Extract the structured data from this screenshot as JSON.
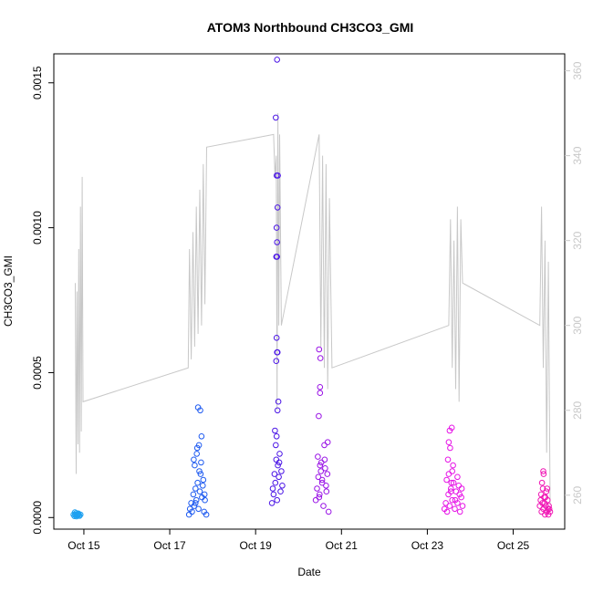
{
  "chart_data": {
    "type": "scatter",
    "title": "ATOM3 Northbound CH3CO3_GMI",
    "xlabel": "Date",
    "ylabel": "CH3CO3_GMI",
    "x_ticks": [
      "Oct 15",
      "Oct 17",
      "Oct 19",
      "Oct 21",
      "Oct 23",
      "Oct 25"
    ],
    "x_tick_days": [
      15,
      17,
      19,
      21,
      23,
      25
    ],
    "x_range_days": [
      14.3,
      26.2
    ],
    "y_ticks": [
      "0.0000",
      "0.0005",
      "0.0010",
      "0.0015"
    ],
    "y_tick_values": [
      0.0,
      0.0005,
      0.001,
      0.0015
    ],
    "ylim": [
      -4e-05,
      0.0016
    ],
    "y2_ticks": [
      "260",
      "280",
      "300",
      "320",
      "340",
      "360"
    ],
    "y2_tick_values": [
      260,
      280,
      300,
      320,
      340,
      360
    ],
    "y2lim": [
      252,
      364
    ],
    "grid": false,
    "colors": {
      "line": "#c8c8c8",
      "right_axis": "#c8c8c8",
      "axis": "#000000",
      "series": [
        "#1ea0f0",
        "#1e5af0",
        "#4a14e6",
        "#9a14e6",
        "#e614e6",
        "#f014b4"
      ]
    },
    "line_series": {
      "name": "",
      "x": [
        14.8,
        14.82,
        14.84,
        14.86,
        14.88,
        14.9,
        14.92,
        14.94,
        14.96,
        14.98,
        17.43,
        17.46,
        17.5,
        17.54,
        17.58,
        17.62,
        17.66,
        17.7,
        17.74,
        17.78,
        17.82,
        17.86,
        19.42,
        19.45,
        19.48,
        19.5,
        19.52,
        19.54,
        19.56,
        19.6,
        20.48,
        20.52,
        20.56,
        20.6,
        20.64,
        20.68,
        20.72,
        20.78,
        23.5,
        23.54,
        23.58,
        23.62,
        23.66,
        23.7,
        23.74,
        23.78,
        23.82,
        25.62,
        25.66,
        25.7,
        25.74,
        25.78,
        25.82,
        25.86
      ],
      "y": [
        310,
        265,
        308,
        272,
        318,
        270,
        328,
        275,
        335,
        282,
        290,
        318,
        292,
        322,
        295,
        328,
        298,
        332,
        300,
        338,
        305,
        342,
        345,
        335,
        340,
        280,
        350,
        300,
        345,
        300,
        345,
        295,
        340,
        290,
        338,
        285,
        330,
        290,
        300,
        325,
        290,
        320,
        285,
        328,
        282,
        325,
        310,
        300,
        328,
        290,
        320,
        270,
        315,
        258
      ]
    },
    "series": [
      {
        "x": [
          14.76,
          14.78,
          14.8,
          14.82,
          14.84,
          14.86,
          14.88,
          14.9,
          14.92,
          14.79,
          14.83,
          14.87,
          14.81,
          14.85,
          14.89
        ],
        "y": [
          1e-05,
          5e-06,
          1e-05,
          1.5e-05,
          8e-06,
          1e-05,
          1.2e-05,
          6e-06,
          1e-05,
          1.8e-05,
          4e-06,
          1.4e-05,
          9e-06,
          1.1e-05,
          7e-06
        ]
      },
      {
        "x": [
          17.45,
          17.47,
          17.5,
          17.52,
          17.55,
          17.57,
          17.6,
          17.62,
          17.65,
          17.67,
          17.7,
          17.72,
          17.75,
          17.77,
          17.8,
          17.82,
          17.85,
          17.58,
          17.63,
          17.68,
          17.73,
          17.78,
          17.6,
          17.66,
          17.71,
          17.74,
          17.64,
          17.69,
          17.56,
          17.81
        ],
        "y": [
          1e-05,
          3e-05,
          5e-05,
          2e-05,
          8e-05,
          4e-05,
          0.0001,
          6e-05,
          0.00012,
          3e-05,
          9e-05,
          0.00015,
          7e-05,
          0.00011,
          2e-05,
          6e-05,
          1e-05,
          0.00018,
          0.00022,
          0.00025,
          0.00019,
          0.00013,
          5e-05,
          0.00038,
          0.00037,
          0.00028,
          0.00024,
          0.00016,
          0.0002,
          8e-05
        ]
      },
      {
        "x": [
          19.38,
          19.4,
          19.42,
          19.44,
          19.46,
          19.48,
          19.5,
          19.52,
          19.54,
          19.56,
          19.58,
          19.6,
          19.62,
          19.45,
          19.47,
          19.49,
          19.51,
          19.53,
          19.55,
          19.48,
          19.5,
          19.49,
          19.51,
          19.48,
          19.5,
          19.49,
          19.51,
          19.5,
          19.49,
          19.52,
          19.47,
          19.5
        ],
        "y": [
          5e-05,
          0.0001,
          8e-05,
          0.00015,
          0.00012,
          0.0002,
          6e-05,
          0.00018,
          0.00014,
          0.00022,
          9e-05,
          0.00016,
          0.00011,
          0.0003,
          0.00025,
          0.00028,
          0.00037,
          0.0004,
          0.00019,
          0.00054,
          0.00057,
          0.00062,
          0.00057,
          0.0009,
          0.00095,
          0.001,
          0.00107,
          0.0009,
          0.00118,
          0.00118,
          0.00138,
          0.00158
        ]
      },
      {
        "x": [
          20.4,
          20.43,
          20.46,
          20.49,
          20.52,
          20.55,
          20.58,
          20.61,
          20.64,
          20.67,
          20.7,
          20.45,
          20.5,
          20.55,
          20.6,
          20.65,
          20.48,
          20.53,
          20.62,
          20.68,
          20.47,
          20.5,
          20.5,
          20.48,
          20.51
        ],
        "y": [
          6e-05,
          0.0001,
          0.00014,
          8e-05,
          0.00016,
          0.00012,
          4e-05,
          0.0002,
          0.00011,
          0.00015,
          2e-05,
          0.00021,
          0.00018,
          0.00013,
          0.00025,
          9e-05,
          7e-05,
          0.00019,
          0.00017,
          0.00026,
          0.00035,
          0.00043,
          0.00045,
          0.00058,
          0.00055
        ]
      },
      {
        "x": [
          23.4,
          23.43,
          23.46,
          23.49,
          23.52,
          23.55,
          23.58,
          23.61,
          23.64,
          23.67,
          23.7,
          23.73,
          23.76,
          23.79,
          23.82,
          23.45,
          23.5,
          23.55,
          23.6,
          23.65,
          23.7,
          23.75,
          23.8,
          23.48,
          23.53,
          23.58,
          23.5,
          23.56,
          23.52,
          23.57
        ],
        "y": [
          3e-05,
          5e-05,
          2e-05,
          8e-05,
          4e-05,
          0.0001,
          6e-05,
          0.00012,
          3e-05,
          9e-05,
          5e-05,
          0.00011,
          2e-05,
          7e-05,
          4e-05,
          0.00013,
          0.00015,
          9e-05,
          0.00018,
          6e-05,
          0.00014,
          8e-05,
          0.0001,
          0.0002,
          0.00024,
          0.00016,
          0.00026,
          0.00012,
          0.0003,
          0.00031
        ]
      },
      {
        "x": [
          25.62,
          25.64,
          25.66,
          25.68,
          25.7,
          25.72,
          25.74,
          25.76,
          25.78,
          25.8,
          25.82,
          25.84,
          25.86,
          25.65,
          25.69,
          25.73,
          25.77,
          25.81,
          25.67,
          25.71,
          25.75,
          25.79,
          25.83,
          25.7
        ],
        "y": [
          4e-05,
          6e-05,
          2e-05,
          5e-05,
          3e-05,
          7e-05,
          1e-05,
          4e-05,
          2e-05,
          6e-05,
          1e-05,
          3e-05,
          2e-05,
          8e-05,
          0.0001,
          5e-05,
          9e-05,
          3e-05,
          0.00012,
          0.00015,
          7e-05,
          0.0001,
          4e-05,
          0.00016
        ]
      }
    ]
  }
}
